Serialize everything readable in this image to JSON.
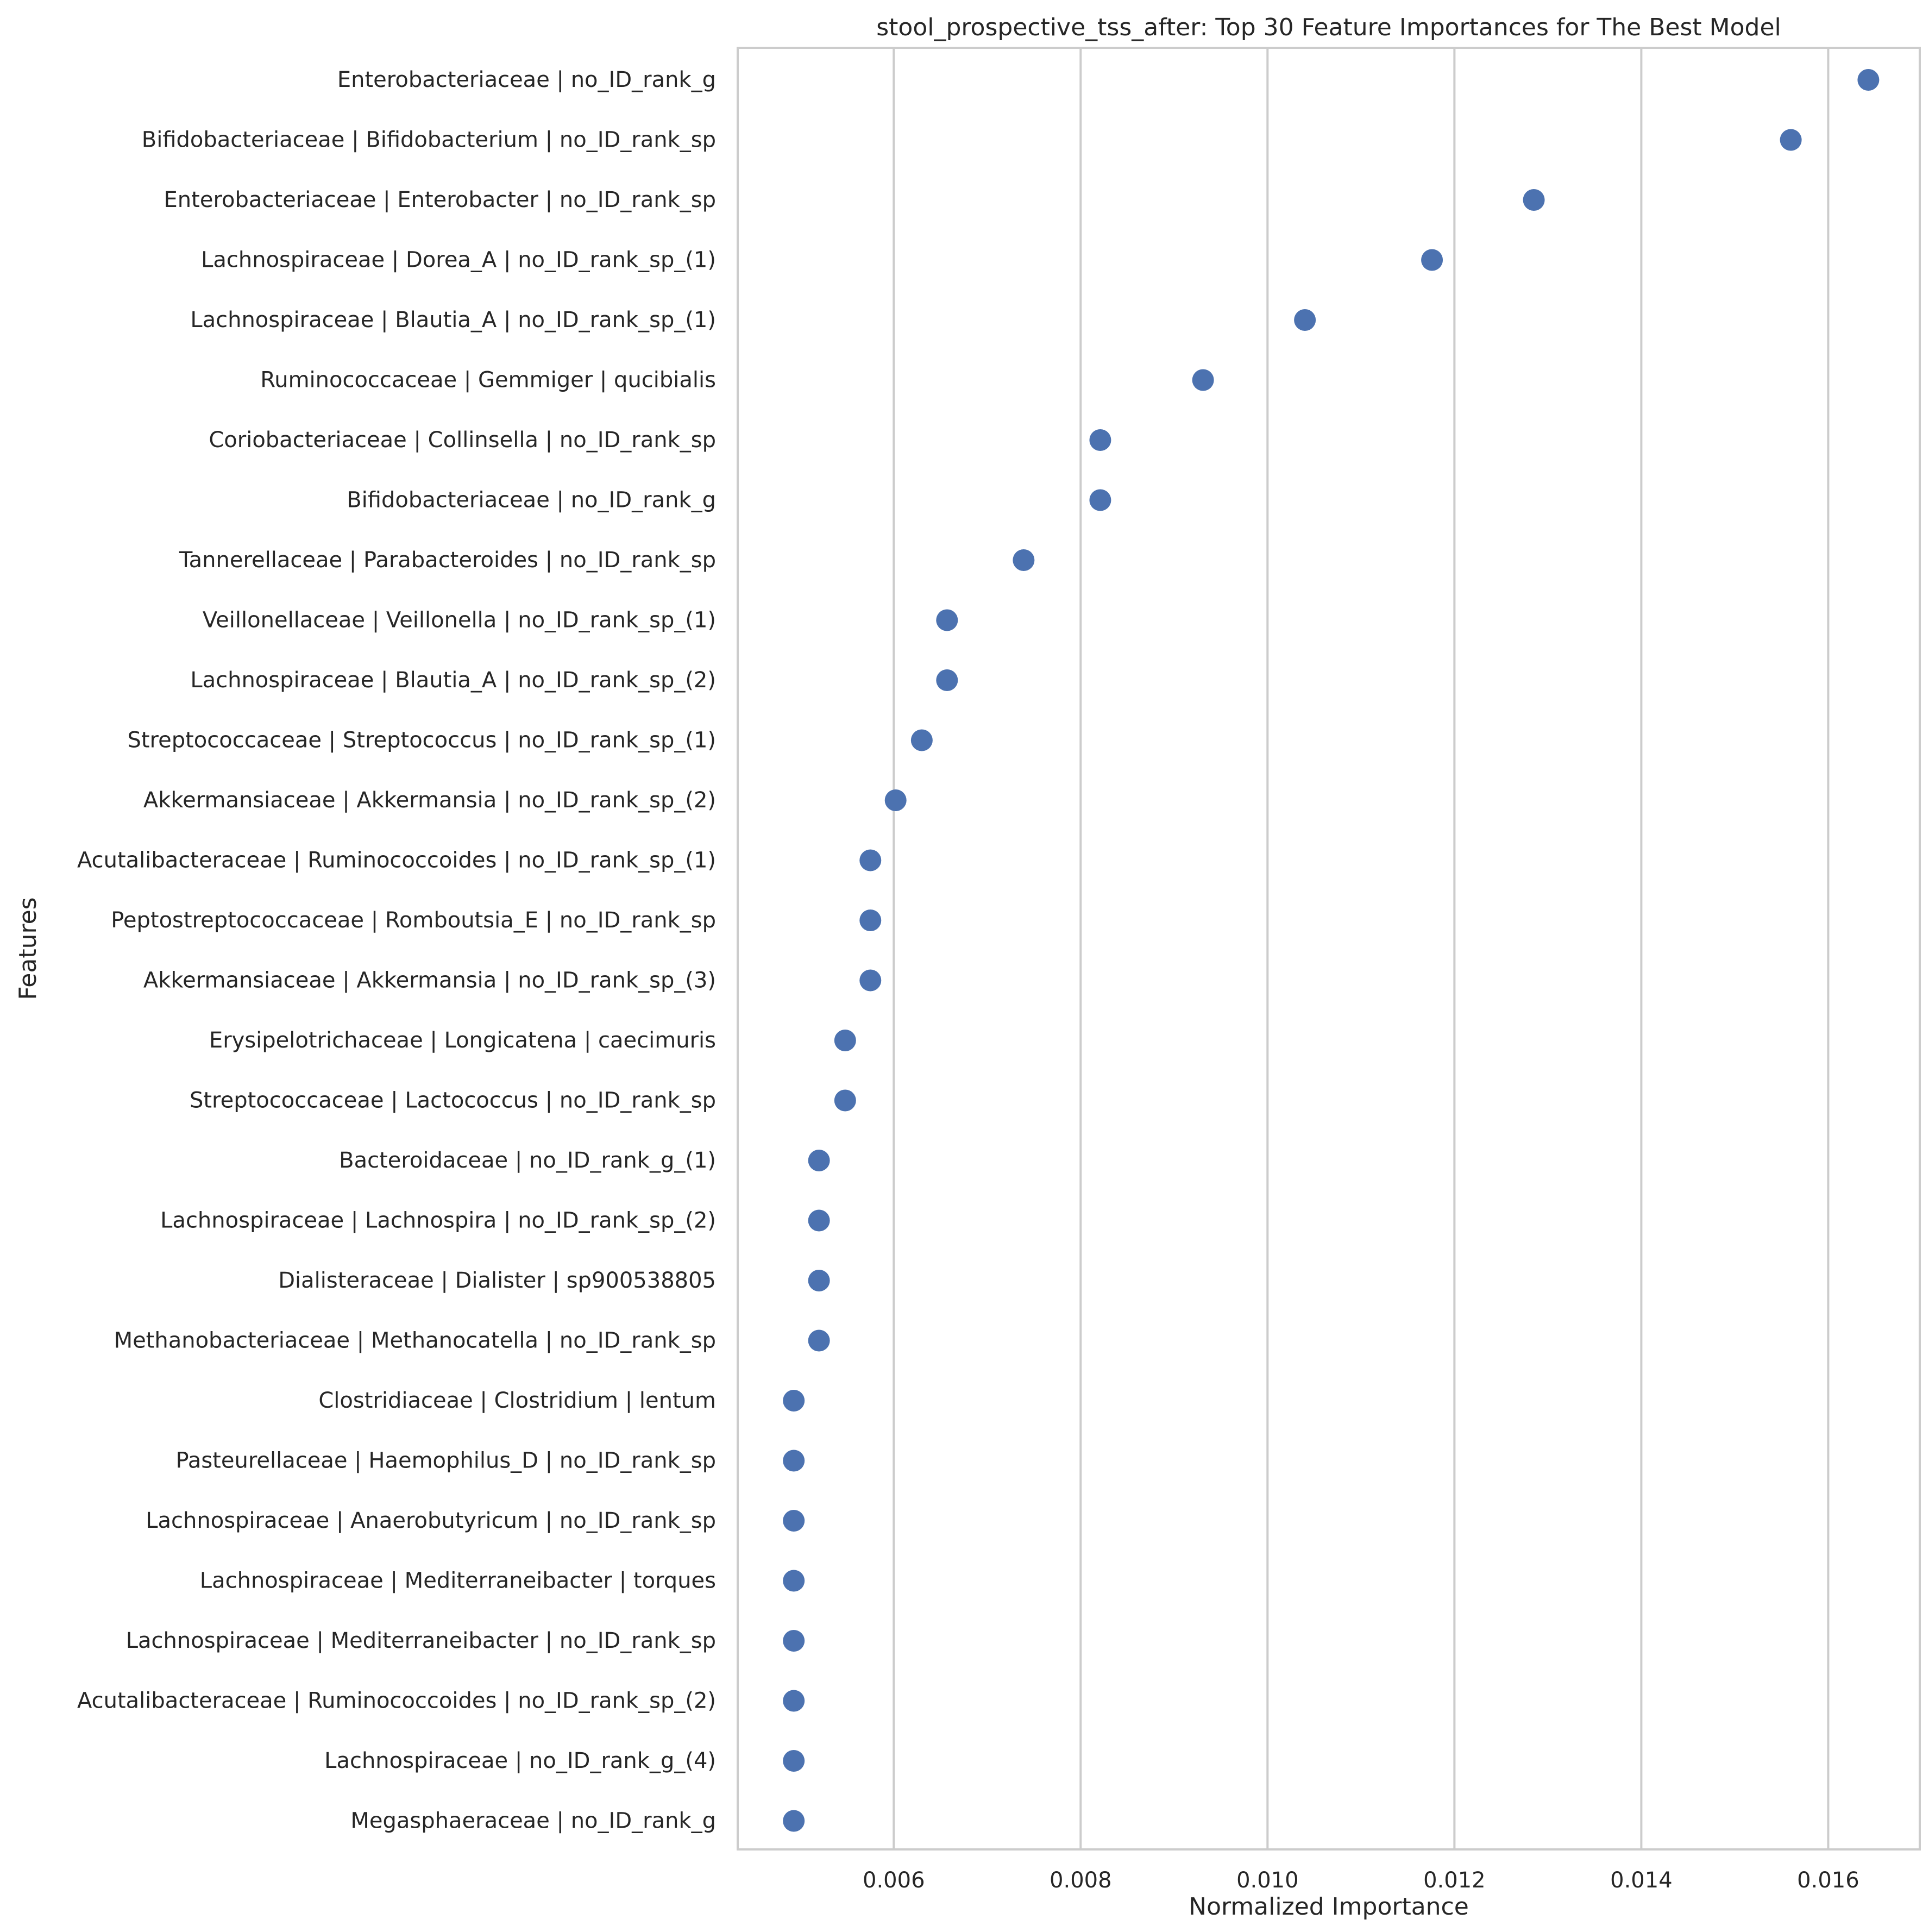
{
  "colors": {
    "point": "#4c72b0",
    "grid": "#cccccc",
    "frame": "#cccccc",
    "text": "#262626",
    "background": "#ffffff"
  },
  "chart_data": {
    "type": "scatter",
    "title": "stool_prospective_tss_after: Top 30 Feature Importances for The Best Model",
    "xlabel": "Normalized Importance",
    "ylabel": "Features",
    "xlim": [
      0.00433,
      0.01698
    ],
    "xticks": [
      0.006,
      0.008,
      0.01,
      0.012,
      0.014,
      0.016
    ],
    "xtick_labels": [
      "0.006",
      "0.008",
      "0.010",
      "0.012",
      "0.014",
      "0.016"
    ],
    "grid": "vertical",
    "legend": "none",
    "categories": [
      "Enterobacteriaceae | no_ID_rank_g",
      "Bifidobacteriaceae | Bifidobacterium | no_ID_rank_sp",
      "Enterobacteriaceae | Enterobacter | no_ID_rank_sp",
      "Lachnospiraceae | Dorea_A | no_ID_rank_sp_(1)",
      "Lachnospiraceae | Blautia_A | no_ID_rank_sp_(1)",
      "Ruminococcaceae | Gemmiger | qucibialis",
      "Coriobacteriaceae | Collinsella | no_ID_rank_sp",
      "Bifidobacteriaceae | no_ID_rank_g",
      "Tannerellaceae | Parabacteroides | no_ID_rank_sp",
      "Veillonellaceae | Veillonella | no_ID_rank_sp_(1)",
      "Lachnospiraceae | Blautia_A | no_ID_rank_sp_(2)",
      "Streptococcaceae | Streptococcus | no_ID_rank_sp_(1)",
      "Akkermansiaceae | Akkermansia | no_ID_rank_sp_(2)",
      "Acutalibacteraceae | Ruminococcoides | no_ID_rank_sp_(1)",
      "Peptostreptococcaceae | Romboutsia_E | no_ID_rank_sp",
      "Akkermansiaceae | Akkermansia | no_ID_rank_sp_(3)",
      "Erysipelotrichaceae | Longicatena | caecimuris",
      "Streptococcaceae | Lactococcus | no_ID_rank_sp",
      "Bacteroidaceae | no_ID_rank_g_(1)",
      "Lachnospiraceae | Lachnospira | no_ID_rank_sp_(2)",
      "Dialisteraceae | Dialister | sp900538805",
      "Methanobacteriaceae | Methanocatella | no_ID_rank_sp",
      "Clostridiaceae | Clostridium | lentum",
      "Pasteurellaceae | Haemophilus_D | no_ID_rank_sp",
      "Lachnospiraceae | Anaerobutyricum | no_ID_rank_sp",
      "Lachnospiraceae | Mediterraneibacter | torques",
      "Lachnospiraceae | Mediterraneibacter | no_ID_rank_sp",
      "Acutalibacteraceae | Ruminococcoides | no_ID_rank_sp_(2)",
      "Lachnospiraceae | no_ID_rank_g_(4)",
      "Megasphaeraceae | no_ID_rank_g"
    ],
    "values": [
      0.01643,
      0.0156,
      0.01285,
      0.01176,
      0.0104,
      0.00931,
      0.00821,
      0.00821,
      0.00739,
      0.00657,
      0.00657,
      0.0063,
      0.00602,
      0.00575,
      0.00575,
      0.00575,
      0.00548,
      0.00548,
      0.0052,
      0.0052,
      0.0052,
      0.0052,
      0.00493,
      0.00493,
      0.00493,
      0.00493,
      0.00493,
      0.00493,
      0.00493,
      0.00493
    ]
  }
}
